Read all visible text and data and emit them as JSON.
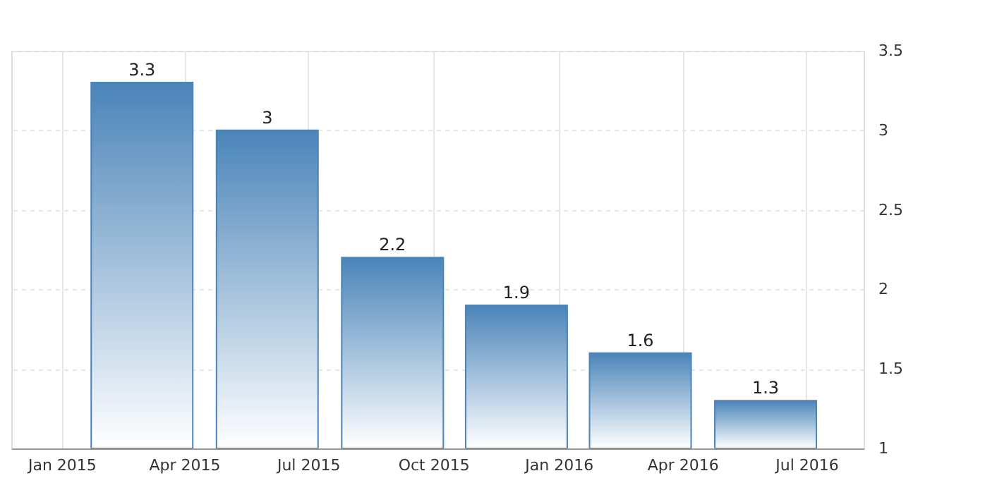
{
  "chart_data": {
    "type": "bar",
    "x": [
      "2015-03",
      "2015-06",
      "2015-09",
      "2015-12",
      "2016-03",
      "2016-06"
    ],
    "values": [
      3.3,
      3,
      2.2,
      1.9,
      1.6,
      1.3
    ],
    "color": "#4a84b9",
    "xlim": [
      "2014-11-25",
      "2016-08-12"
    ],
    "xticks": [
      {
        "value": "2015-01",
        "label": "Jan 2015"
      },
      {
        "value": "2015-04",
        "label": "Apr 2015"
      },
      {
        "value": "2015-07",
        "label": "Jul 2015"
      },
      {
        "value": "2015-10",
        "label": "Oct 2015"
      },
      {
        "value": "2016-01",
        "label": "Jan 2016"
      },
      {
        "value": "2016-04",
        "label": "Apr 2016"
      },
      {
        "value": "2016-07",
        "label": "Jul 2016"
      }
    ],
    "ylim": [
      1,
      3.5
    ],
    "yticks": [
      1,
      1.5,
      2,
      2.5,
      3,
      3.5
    ],
    "grid": true,
    "data_labels": true
  }
}
